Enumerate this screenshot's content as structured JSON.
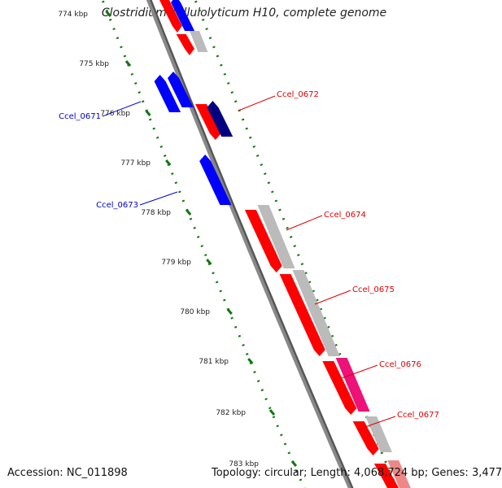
{
  "title": "Clostridium cellulolyticum H10, complete genome",
  "footer": {
    "accession_label": "Accession:",
    "accession": "NC_011898",
    "topology_label": "Topology:",
    "topology": "circular",
    "length_label": "Length:",
    "length": "4,068,724 bp",
    "genes_label": "Genes:",
    "genes": "3,477"
  },
  "colors": {
    "forward_gene": "#ff0000",
    "reverse_gene": "#0000ff",
    "reverse_gene_dark": "#000080",
    "feature_grey": "#bbbbbb",
    "feature_magenta": "#ee1177",
    "kbp_ticks": "#117711",
    "backbone": "#888888",
    "label_forward": "#dd0000",
    "label_reverse": "#0000cc"
  },
  "kbp_labels": [
    "774 kbp",
    "775 kbp",
    "776 kbp",
    "777 kbp",
    "778 kbp",
    "779 kbp",
    "780 kbp",
    "781 kbp",
    "782 kbp",
    "783 kbp"
  ],
  "gene_labels": [
    {
      "name": "Ccel_0671",
      "strand": "reverse"
    },
    {
      "name": "Ccel_0672",
      "strand": "forward"
    },
    {
      "name": "Ccel_0673",
      "strand": "reverse"
    },
    {
      "name": "Ccel_0674",
      "strand": "forward"
    },
    {
      "name": "Ccel_0675",
      "strand": "forward"
    },
    {
      "name": "Ccel_0676",
      "strand": "forward"
    },
    {
      "name": "Ccel_0677",
      "strand": "forward"
    }
  ]
}
